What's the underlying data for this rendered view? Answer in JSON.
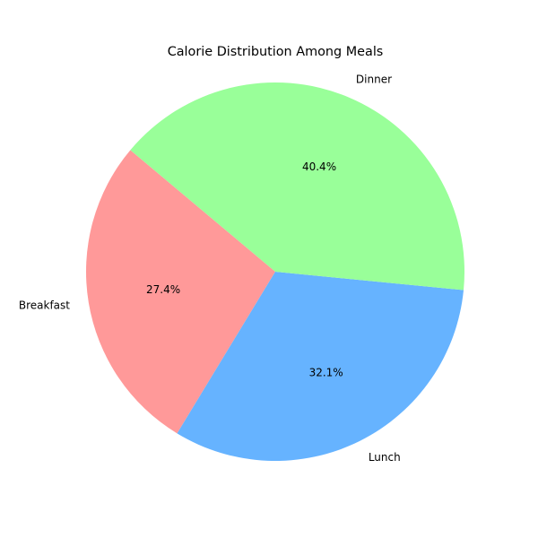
{
  "chart_data": {
    "type": "pie",
    "title": "Calorie Distribution Among Meals",
    "categories": [
      "Breakfast",
      "Lunch",
      "Dinner"
    ],
    "values": [
      27.4,
      32.1,
      40.4
    ],
    "percent_labels": [
      "27.4%",
      "32.1%",
      "40.4%"
    ],
    "colors": [
      "#ff9999",
      "#66b3ff",
      "#99ff99"
    ],
    "start_angle_deg": 140,
    "direction": "counterclockwise",
    "legend": "none"
  }
}
